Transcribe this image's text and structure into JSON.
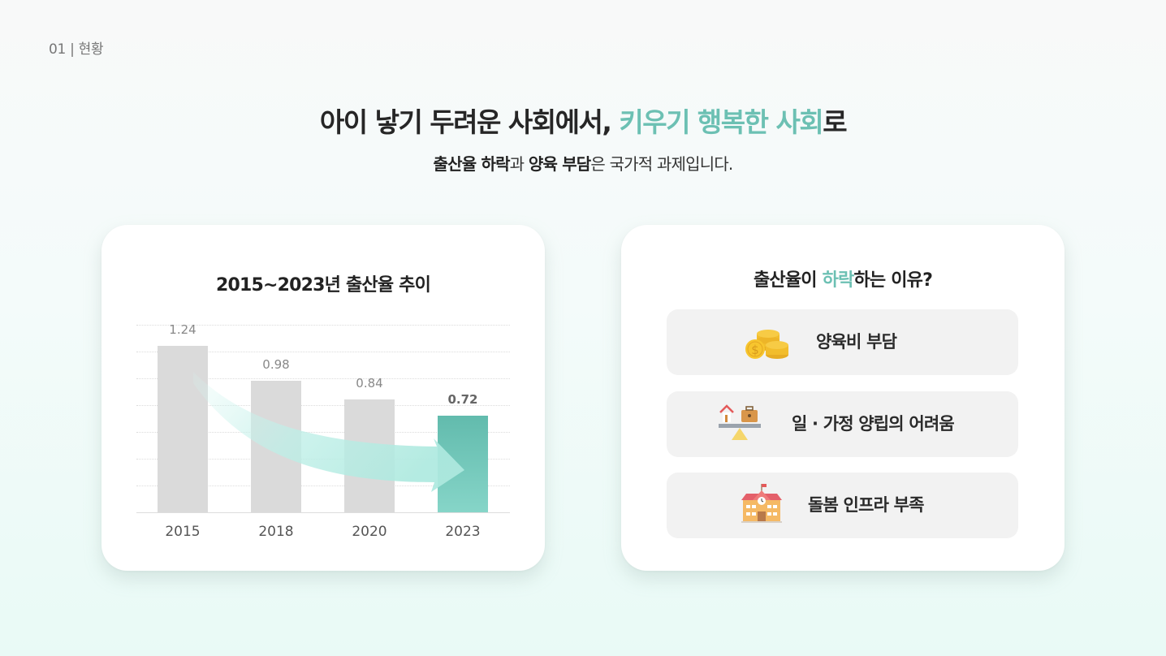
{
  "section": {
    "label": "01 | 현황"
  },
  "headline": {
    "part1": "아이 낳기 두려운 사회에서, ",
    "accent": "키우기 행복한 사회",
    "part2": "로"
  },
  "subline": {
    "bold1": "출산율 하락",
    "text1": "과 ",
    "bold2": "양육 부담",
    "text2": "은 국가적 과제입니다."
  },
  "colors": {
    "accent": "#6cc0b3",
    "bar_default": "#dadada",
    "bar_highlight": "#62bbad",
    "arrow": "#b3ece3"
  },
  "chart_card": {
    "title": "2015~2023년 출산율 추이"
  },
  "chart_data": {
    "type": "bar",
    "title": "2015~2023년 출산율 추이",
    "categories": [
      "2015",
      "2018",
      "2020",
      "2023"
    ],
    "values": [
      1.24,
      0.98,
      0.84,
      0.72
    ],
    "value_labels": [
      "1.24",
      "0.98",
      "0.84",
      "0.72"
    ],
    "highlight_index": 3,
    "xlabel": "",
    "ylabel": "",
    "ylim": [
      0,
      1.4
    ],
    "grid": true,
    "legend": null,
    "annotations": [
      "downward trend arrow from 2015 to 2023"
    ]
  },
  "reasons_card": {
    "title_part1": "출산율이 ",
    "title_accent": "하락",
    "title_part2": "하는 이유?",
    "items": [
      {
        "icon": "coins-icon",
        "label": "양육비 부담"
      },
      {
        "icon": "work-life-balance-icon",
        "label": "일 · 가정 양립의 어려움"
      },
      {
        "icon": "school-building-icon",
        "label": "돌봄 인프라 부족"
      }
    ]
  }
}
